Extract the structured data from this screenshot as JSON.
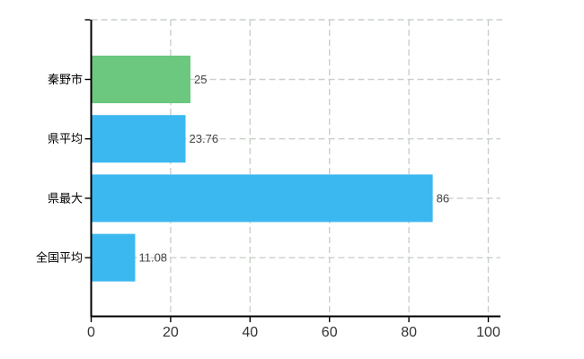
{
  "chart_data": {
    "type": "bar",
    "orientation": "horizontal",
    "title": "",
    "xlabel": "",
    "ylabel": "",
    "categories": [
      "秦野市",
      "県平均",
      "県最大",
      "全国平均"
    ],
    "values": [
      25,
      23.76,
      86,
      11.08
    ],
    "value_labels": [
      "25",
      "23.76",
      "86",
      "11.08"
    ],
    "bar_colors": [
      "#6bc87e",
      "#3cb8f0",
      "#3cb8f0",
      "#3cb8f0"
    ],
    "xlim": [
      0,
      100
    ],
    "x_ticks": [
      0,
      20,
      40,
      60,
      80,
      100
    ],
    "x_tick_labels": [
      "0",
      "20",
      "40",
      "60",
      "80",
      "100"
    ],
    "grid": true,
    "grid_style": "dashed",
    "grid_color": "#c9d0c9",
    "axis_color": "#000000",
    "tick_label_color": "#333333",
    "category_label_color": "#000000",
    "value_label_color": "#444444",
    "background": "#ffffff",
    "legend_position": "none"
  }
}
